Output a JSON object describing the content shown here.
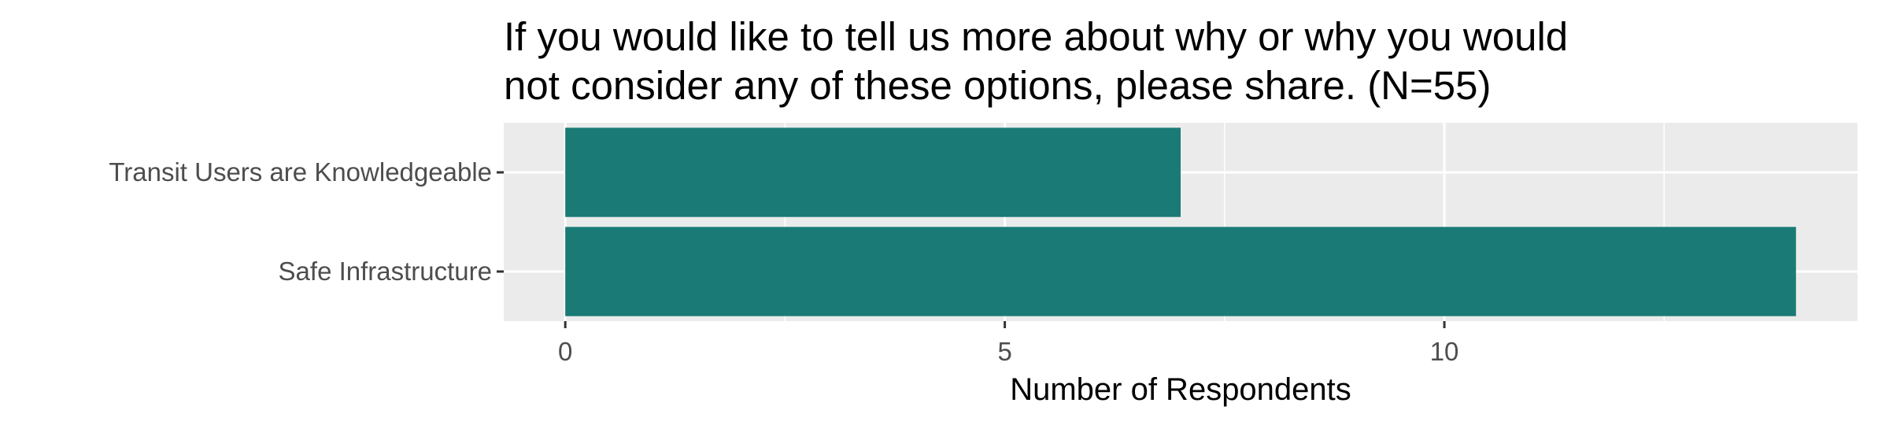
{
  "chart_data": {
    "type": "bar",
    "orientation": "horizontal",
    "title_lines": [
      "If you would like to tell us more about why or why you would",
      "not consider any of these options, please share. (N=55)"
    ],
    "categories": [
      "Transit Users are Knowledgeable",
      "Safe Infrastructure"
    ],
    "values": [
      7,
      14
    ],
    "xlabel": "Number of Respondents",
    "ylabel": "",
    "xticks": [
      0,
      5,
      10
    ],
    "xlim": [
      -0.7,
      14.7
    ],
    "grid": true,
    "bar_color": "#1a7a76",
    "panel_background": "#ebebeb"
  }
}
